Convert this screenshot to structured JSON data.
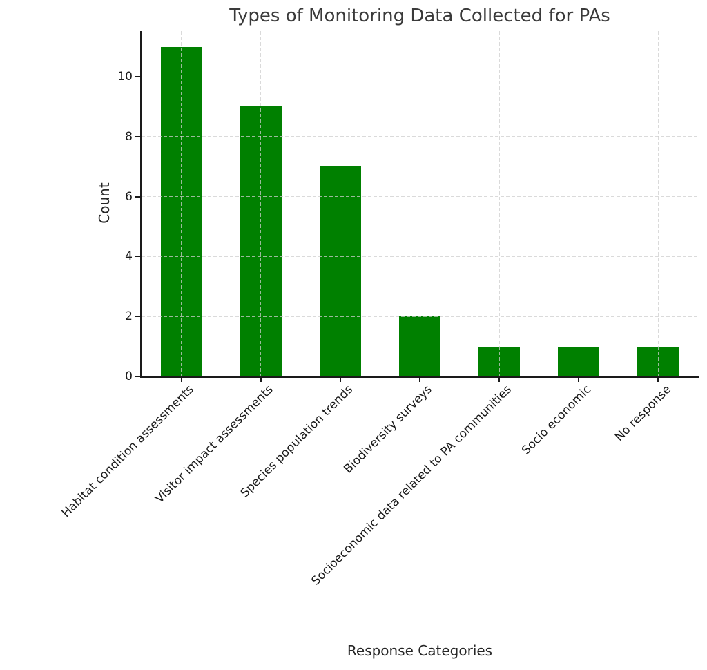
{
  "chart_data": {
    "type": "bar",
    "title": "Types of Monitoring Data Collected for PAs",
    "xlabel": "Response Categories",
    "ylabel": "Count",
    "categories": [
      "Habitat condition assessments",
      "Visitor impact assessments",
      "Species population trends",
      "Biodiversity surveys",
      "Socioeconomic data related to PA communities",
      "Socio economic",
      "No response"
    ],
    "values": [
      11,
      9,
      7,
      2,
      1,
      1,
      1
    ],
    "yticks": [
      0,
      2,
      4,
      6,
      8,
      10
    ],
    "ylim": [
      0,
      11.52
    ],
    "bar_color": "#008000",
    "grid": "dashed",
    "grid_color": "#d3d3d3",
    "legend_position": "none"
  }
}
